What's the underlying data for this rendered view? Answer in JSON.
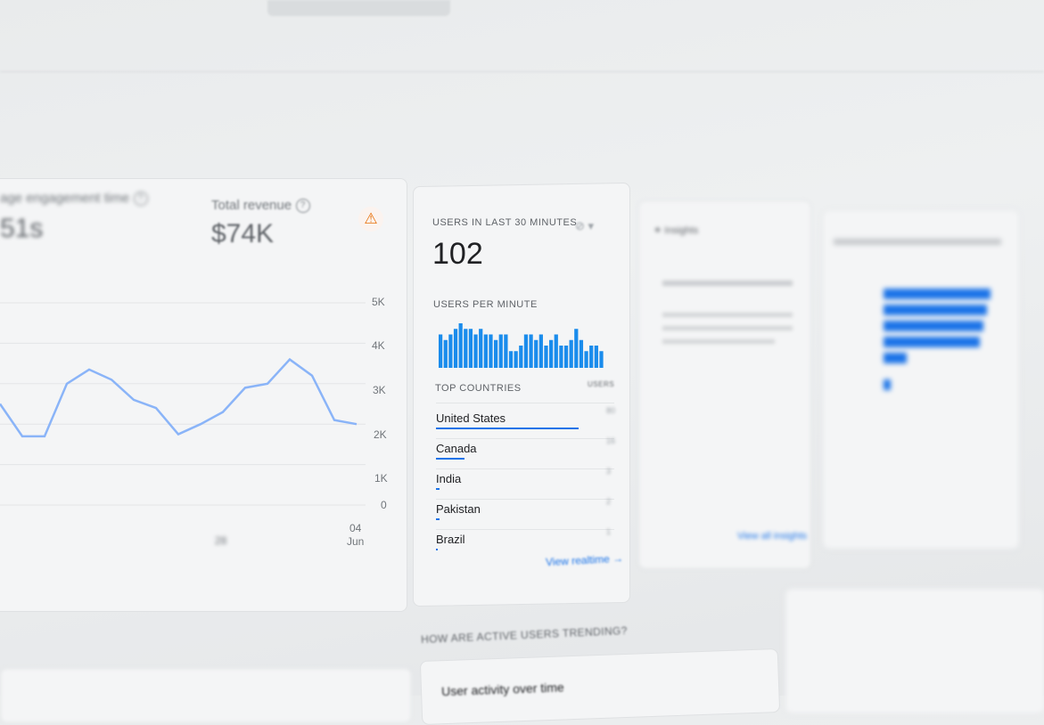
{
  "colors": {
    "accent": "#1a73e8",
    "warning": "#e8710a",
    "text": "#202124"
  },
  "left_card": {
    "engagement_label": "age engagement time",
    "engagement_value": "51s",
    "revenue_label": "Total revenue",
    "revenue_value": "$74K",
    "help_icon": "help-circle-icon",
    "warning_icon": "warning-triangle-icon"
  },
  "chart_data": {
    "type": "line",
    "y_ticks": [
      "5K",
      "4K",
      "3K",
      "2K",
      "1K",
      "0"
    ],
    "x_ticks": [
      "28",
      "04\nJun"
    ],
    "x_tick_labels": {
      "a": "28",
      "b_day": "04",
      "b_month": "Jun"
    },
    "ylim": [
      0,
      5000
    ],
    "values": [
      2500,
      1700,
      1700,
      3000,
      3350,
      3100,
      2600,
      2400,
      1750,
      2000,
      2300,
      2900,
      3000,
      3600,
      3200,
      2100,
      2000
    ],
    "grid": true
  },
  "realtime": {
    "title": "USERS IN LAST 30 MINUTES",
    "value": "102",
    "per_minute_label": "USERS PER MINUTE",
    "per_minute_values": [
      6,
      5,
      6,
      7,
      8,
      7,
      7,
      6,
      7,
      6,
      6,
      5,
      6,
      6,
      3,
      3,
      4,
      6,
      6,
      5,
      6,
      4,
      5,
      6,
      4,
      4,
      5,
      7,
      5,
      3,
      4,
      4,
      3
    ],
    "top_countries_label": "TOP COUNTRIES",
    "users_col_label": "USERS",
    "countries": [
      {
        "name": "United States",
        "users": "80",
        "fraction": 0.9
      },
      {
        "name": "Canada",
        "users": "16",
        "fraction": 0.18
      },
      {
        "name": "India",
        "users": "3",
        "fraction": 0.02
      },
      {
        "name": "Pakistan",
        "users": "2",
        "fraction": 0.02
      },
      {
        "name": "Brazil",
        "users": "1",
        "fraction": 0.01
      }
    ],
    "view_link": "View realtime",
    "arrow_icon": "arrow-right-icon"
  },
  "insights": {
    "title": "Insights",
    "link": "View all insights"
  },
  "bottom": {
    "section_title": "HOW ARE ACTIVE USERS TRENDING?",
    "card_title": "User activity over time"
  }
}
